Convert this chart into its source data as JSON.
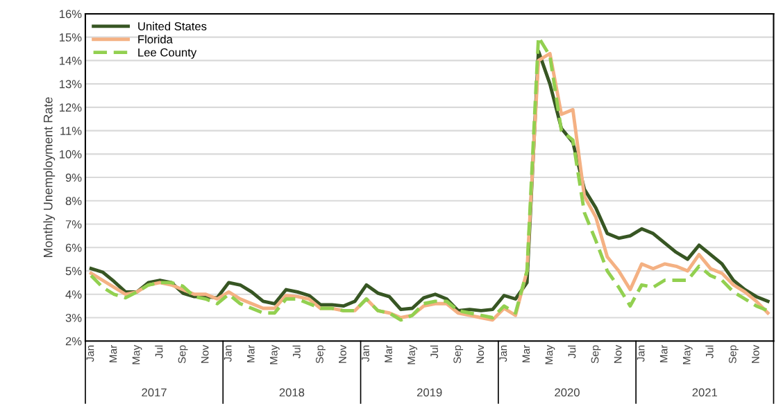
{
  "chart_data": {
    "type": "line",
    "ylabel": "Monthly Unemployment Rate",
    "categories": [
      "Jan",
      null,
      "Mar",
      null,
      "May",
      null,
      "Jul",
      null,
      "Sep",
      null,
      "Nov",
      null,
      "Jan",
      null,
      "Mar",
      null,
      "May",
      null,
      "Jul",
      null,
      "Sep",
      null,
      "Nov",
      null,
      "Jan",
      null,
      "Mar",
      null,
      "May",
      null,
      "Jul",
      null,
      "Sep",
      null,
      "Nov",
      null,
      "Jan",
      null,
      "Mar",
      null,
      "May",
      null,
      "Jul",
      null,
      "Sep",
      null,
      "Nov",
      null,
      "Jan",
      null,
      "Mar",
      null,
      "May",
      null,
      "Jul",
      null,
      "Sep",
      null,
      "Nov",
      null
    ],
    "annotations": [
      "2017",
      "2018",
      "2019",
      "2020",
      "2021"
    ],
    "series": [
      {
        "name": "United States",
        "color": "#375623",
        "line_style": "solid",
        "values": [
          5.1,
          4.95,
          4.55,
          4.1,
          4.1,
          4.5,
          4.6,
          4.5,
          4.05,
          3.9,
          3.9,
          3.85,
          4.5,
          4.4,
          4.1,
          3.7,
          3.6,
          4.2,
          4.1,
          3.95,
          3.55,
          3.55,
          3.5,
          3.7,
          4.4,
          4.05,
          3.9,
          3.35,
          3.4,
          3.85,
          4.0,
          3.8,
          3.3,
          3.35,
          3.3,
          3.35,
          3.95,
          3.8,
          4.5,
          14.4,
          13.0,
          11.1,
          10.5,
          8.5,
          7.7,
          6.6,
          6.4,
          6.5,
          6.8,
          6.6,
          6.2,
          5.8,
          5.5,
          6.1,
          5.7,
          5.3,
          4.6,
          4.2,
          3.9,
          3.7
        ]
      },
      {
        "name": "Florida",
        "color": "#f4b183",
        "line_style": "solid",
        "values": [
          4.9,
          4.6,
          4.3,
          4.0,
          4.1,
          4.4,
          4.5,
          4.4,
          4.2,
          4.0,
          4.0,
          3.8,
          4.1,
          3.8,
          3.6,
          3.4,
          3.4,
          3.95,
          3.9,
          3.8,
          3.4,
          3.4,
          3.3,
          3.3,
          3.8,
          3.3,
          3.2,
          3.0,
          3.1,
          3.5,
          3.6,
          3.6,
          3.2,
          3.1,
          3.0,
          2.9,
          3.4,
          3.1,
          5.0,
          14.0,
          14.3,
          11.7,
          11.9,
          8.2,
          7.3,
          5.6,
          5.0,
          4.2,
          5.3,
          5.1,
          5.3,
          5.2,
          5.0,
          5.7,
          5.1,
          4.9,
          4.4,
          4.1,
          3.7,
          3.2
        ]
      },
      {
        "name": "Lee County",
        "color": "#92d050",
        "line_style": "dashed",
        "values": [
          4.8,
          4.3,
          4.0,
          3.85,
          4.1,
          4.4,
          4.5,
          4.5,
          4.35,
          3.9,
          3.8,
          3.6,
          4.0,
          3.6,
          3.4,
          3.2,
          3.2,
          3.8,
          3.8,
          3.6,
          3.4,
          3.4,
          3.3,
          3.3,
          3.8,
          3.3,
          3.2,
          2.9,
          3.1,
          3.6,
          3.7,
          3.7,
          3.3,
          3.2,
          3.1,
          3.0,
          3.5,
          3.2,
          5.0,
          15.0,
          14.2,
          11.0,
          10.6,
          7.5,
          6.3,
          5.0,
          4.3,
          3.5,
          4.4,
          4.3,
          4.6,
          4.6,
          4.6,
          5.2,
          4.8,
          4.6,
          4.1,
          3.8,
          3.5,
          3.3
        ]
      }
    ],
    "ylim": [
      2,
      16
    ],
    "yticks": [
      {
        "value": 2,
        "label": "2%"
      },
      {
        "value": 3,
        "label": "3%"
      },
      {
        "value": 4,
        "label": "4%"
      },
      {
        "value": 5,
        "label": "5%"
      },
      {
        "value": 6,
        "label": "6%"
      },
      {
        "value": 7,
        "label": "7%"
      },
      {
        "value": 8,
        "label": "8%"
      },
      {
        "value": 9,
        "label": "9%"
      },
      {
        "value": 10,
        "label": "10%"
      },
      {
        "value": 11,
        "label": "11%"
      },
      {
        "value": 12,
        "label": "12%"
      },
      {
        "value": 13,
        "label": "13%"
      },
      {
        "value": 14,
        "label": "14%"
      },
      {
        "value": 15,
        "label": "15%"
      },
      {
        "value": 16,
        "label": "16%"
      }
    ],
    "grid": "y",
    "legend": "top left",
    "marker": "none"
  }
}
